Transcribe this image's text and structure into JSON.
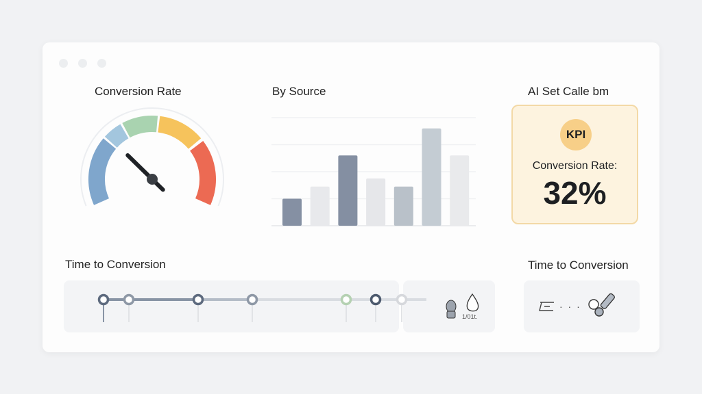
{
  "window": {
    "controls": [
      "close",
      "minimize",
      "maximize"
    ]
  },
  "gauge": {
    "title": "Conversion Rate",
    "segment_colors": [
      "#7fa6cc",
      "#a3c6de",
      "#a9d3b0",
      "#f6c35c",
      "#ec6a53"
    ],
    "needle_level": 0.3
  },
  "bar_panel": {
    "title": "By Source",
    "chart_data": {
      "type": "bar",
      "title": "By Source",
      "values": [
        1.0,
        1.45,
        2.6,
        1.75,
        1.45,
        3.6,
        2.6
      ],
      "ylim": [
        0,
        4
      ],
      "grid": true,
      "colors": [
        "#8590a3",
        "#e8e9ec",
        "#848fa2",
        "#e6e7ea",
        "#b9c1c9",
        "#c4ccd3",
        "#e9eaec"
      ]
    }
  },
  "kpi": {
    "heading": "AI Set Calle bm",
    "badge": "KPI",
    "label": "Conversion Rate:",
    "value": "32%",
    "accent": "#f7cf88"
  },
  "timeline": {
    "title": "Time to Conversion",
    "caption": "1/01t.",
    "nodes": [
      {
        "color": "#5d6a7e"
      },
      {
        "color": "#8e98a6"
      },
      {
        "color": "#5d6a7e"
      },
      {
        "color": "#8e98a6"
      },
      {
        "color": "#b5d1b2"
      },
      {
        "color": "#4d5a6e"
      },
      {
        "color": "#d6d8dc"
      }
    ]
  },
  "right_panel": {
    "title": "Time to Conversion",
    "dots": "· · ·"
  }
}
